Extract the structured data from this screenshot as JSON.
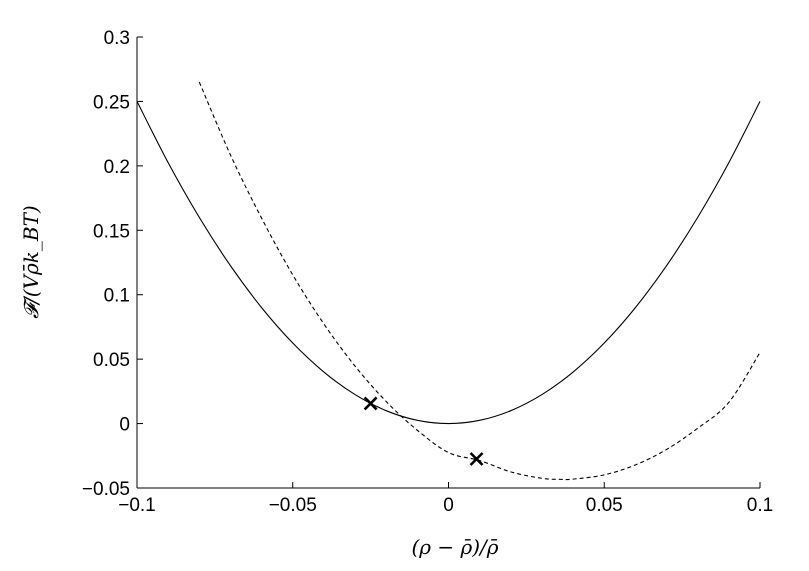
{
  "chart_data": {
    "type": "line",
    "xlabel": "(ρ − ρ̄)/ρ̄",
    "ylabel": "𝓕/(Vρ̄k_BT)",
    "xlim": [
      -0.1,
      0.1
    ],
    "ylim": [
      -0.05,
      0.3
    ],
    "x_ticks": [
      {
        "value": -0.1,
        "label": "−0.1"
      },
      {
        "value": -0.05,
        "label": "−0.05"
      },
      {
        "value": 0,
        "label": "0"
      },
      {
        "value": 0.05,
        "label": "0.05"
      },
      {
        "value": 0.1,
        "label": "0.1"
      }
    ],
    "y_ticks": [
      {
        "value": -0.05,
        "label": "−0.05"
      },
      {
        "value": 0,
        "label": "0"
      },
      {
        "value": 0.05,
        "label": "0.05"
      },
      {
        "value": 0.1,
        "label": "0.1"
      },
      {
        "value": 0.15,
        "label": "0.15"
      },
      {
        "value": 0.2,
        "label": "0.2"
      },
      {
        "value": 0.25,
        "label": "0.25"
      },
      {
        "value": 0.3,
        "label": "0.3"
      }
    ],
    "grid": false,
    "legend": "none",
    "series": [
      {
        "style": "solid",
        "color": "#000000",
        "x": [
          -0.1,
          -0.09,
          -0.08,
          -0.07,
          -0.06,
          -0.05,
          -0.04,
          -0.03,
          -0.02,
          -0.01,
          0,
          0.01,
          0.02,
          0.03,
          0.04,
          0.05,
          0.06,
          0.07,
          0.08,
          0.09,
          0.1
        ],
        "y": [
          0.25,
          0.2025,
          0.16,
          0.1225,
          0.09,
          0.0625,
          0.04,
          0.0225,
          0.01,
          0.0025,
          0,
          0.0025,
          0.01,
          0.0225,
          0.04,
          0.0625,
          0.09,
          0.1225,
          0.16,
          0.2025,
          0.25
        ]
      },
      {
        "style": "dashed",
        "color": "#000000",
        "x": [
          -0.08,
          -0.07,
          -0.06,
          -0.05,
          -0.04,
          -0.03,
          -0.02,
          -0.01,
          0,
          0.01,
          0.02,
          0.03,
          0.036,
          0.04,
          0.05,
          0.06,
          0.07,
          0.08,
          0.09,
          0.1
        ],
        "y": [
          0.265,
          0.2085,
          0.1594,
          0.1154,
          0.0773,
          0.0446,
          0.0171,
          -0.0052,
          -0.0225,
          -0.0287,
          -0.0375,
          -0.0425,
          -0.0433,
          -0.0431,
          -0.0398,
          -0.0321,
          -0.0201,
          -0.0036,
          0.0165,
          0.0552
        ]
      }
    ],
    "markers": [
      {
        "shape": "x",
        "x": -0.025,
        "y": 0.0156
      },
      {
        "shape": "x",
        "x": 0.009,
        "y": -0.0275
      }
    ]
  }
}
